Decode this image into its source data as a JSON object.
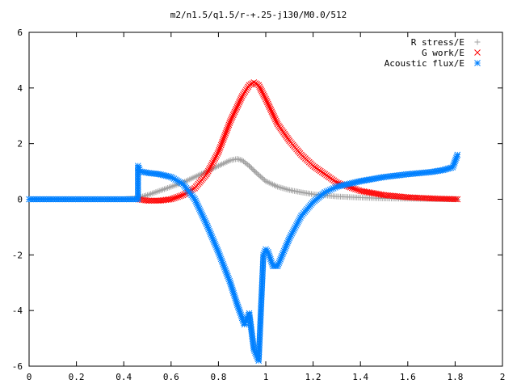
{
  "chart_data": {
    "type": "scatter",
    "title": "m2/n1.5/q1.5/r-+.25-j130/M0.0/512",
    "xlabel": "",
    "ylabel": "",
    "xlim": [
      0,
      2
    ],
    "ylim": [
      -6,
      6
    ],
    "x_ticks": [
      0,
      0.2,
      0.4,
      0.6,
      0.8,
      1,
      1.2,
      1.4,
      1.6,
      1.8,
      2
    ],
    "x_tick_labels": [
      "0",
      "0.2",
      "0.4",
      "0.6",
      "0.8",
      "1",
      "1.2",
      "1.4",
      "1.6",
      "1.8",
      "2"
    ],
    "y_ticks": [
      -6,
      -4,
      -2,
      0,
      2,
      4,
      6
    ],
    "y_tick_labels": [
      "-6",
      "-4",
      "-2",
      "0",
      "2",
      "4",
      "6"
    ],
    "grid": false,
    "legend_position": "top-right",
    "series": [
      {
        "name": "R stress/E",
        "marker": "plus",
        "color": "#a0a0a0",
        "x": [
          0.0,
          0.1,
          0.2,
          0.3,
          0.4,
          0.46,
          0.5,
          0.55,
          0.6,
          0.65,
          0.7,
          0.75,
          0.8,
          0.85,
          0.88,
          0.9,
          0.93,
          0.96,
          1.0,
          1.05,
          1.1,
          1.15,
          1.2,
          1.3,
          1.4,
          1.5,
          1.6,
          1.7,
          1.81
        ],
        "y": [
          0.0,
          0.0,
          0.0,
          0.0,
          0.0,
          0.05,
          0.15,
          0.3,
          0.45,
          0.6,
          0.8,
          1.0,
          1.2,
          1.4,
          1.45,
          1.4,
          1.2,
          0.95,
          0.65,
          0.45,
          0.33,
          0.25,
          0.18,
          0.1,
          0.06,
          0.03,
          0.02,
          0.01,
          0.0
        ]
      },
      {
        "name": "G work/E",
        "marker": "cross",
        "color": "#ff0000",
        "x": [
          0.46,
          0.5,
          0.55,
          0.6,
          0.65,
          0.7,
          0.75,
          0.8,
          0.85,
          0.9,
          0.93,
          0.95,
          0.97,
          1.0,
          1.05,
          1.1,
          1.15,
          1.2,
          1.3,
          1.4,
          1.5,
          1.6,
          1.7,
          1.81
        ],
        "y": [
          0.0,
          -0.05,
          -0.05,
          0.0,
          0.15,
          0.4,
          0.9,
          1.7,
          2.8,
          3.7,
          4.1,
          4.2,
          4.1,
          3.6,
          2.7,
          2.1,
          1.6,
          1.2,
          0.6,
          0.3,
          0.15,
          0.07,
          0.03,
          0.0
        ]
      },
      {
        "name": "Acoustic flux/E",
        "marker": "star",
        "color": "#0080ff",
        "x": [
          0.0,
          0.1,
          0.2,
          0.3,
          0.4,
          0.46,
          0.46,
          0.47,
          0.5,
          0.55,
          0.6,
          0.65,
          0.7,
          0.75,
          0.8,
          0.85,
          0.88,
          0.91,
          0.93,
          0.95,
          0.97,
          0.99,
          1.0,
          1.01,
          1.03,
          1.05,
          1.08,
          1.1,
          1.15,
          1.2,
          1.25,
          1.3,
          1.4,
          1.5,
          1.6,
          1.7,
          1.75,
          1.79,
          1.81
        ],
        "y": [
          0.0,
          0.0,
          0.0,
          0.0,
          0.0,
          0.0,
          1.2,
          1.0,
          0.95,
          0.9,
          0.8,
          0.55,
          0.0,
          -0.9,
          -1.9,
          -3.0,
          -3.8,
          -4.5,
          -4.1,
          -5.4,
          -5.8,
          -2.0,
          -1.8,
          -1.9,
          -2.4,
          -2.4,
          -1.8,
          -1.4,
          -0.6,
          -0.1,
          0.25,
          0.45,
          0.65,
          0.8,
          0.9,
          0.98,
          1.05,
          1.15,
          1.6
        ]
      }
    ]
  }
}
